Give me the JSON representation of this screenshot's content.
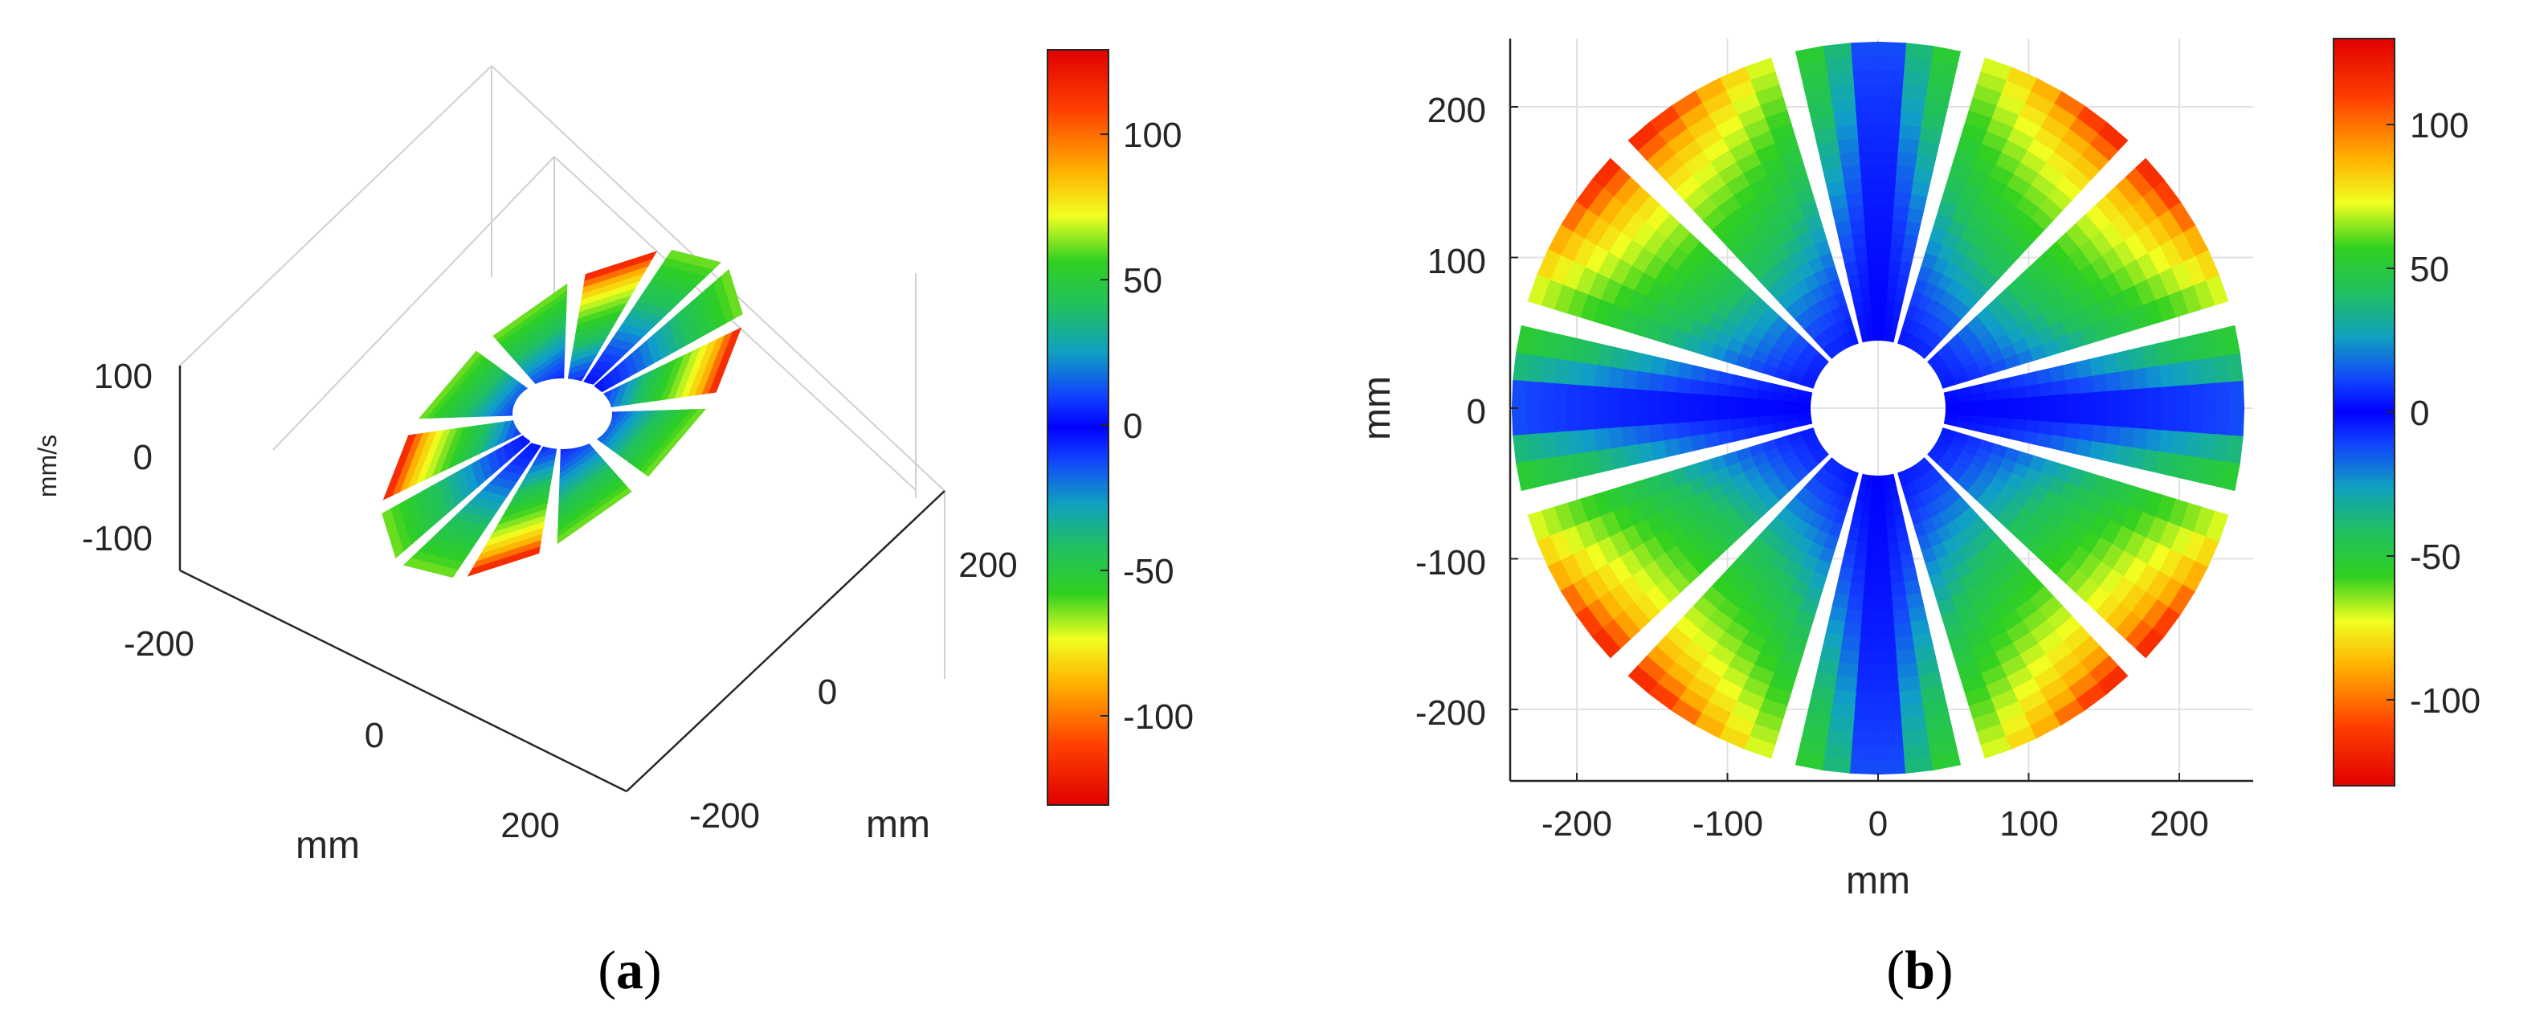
{
  "chart_data": [
    {
      "id": "a",
      "type": "heatmap",
      "view": "3d-surface",
      "colormap": "jet-reversed-symmetric",
      "center_hub_radius_mm": 45,
      "outer_radius_mm": 230,
      "blade_count": 12,
      "blade_angles_deg": [
        15,
        45,
        75,
        105,
        135,
        165,
        195,
        225,
        255,
        285,
        315,
        345
      ],
      "value_pattern": "axial blades are ~0; diagonal blades grow toward outer edge to |v|≈125",
      "xlabel": "mm",
      "ylabel": "mm",
      "zlabel": "mm/s",
      "xticks": [
        "-200",
        "0",
        "200"
      ],
      "yticks": [
        "-200",
        "0",
        "200"
      ],
      "zticks": [
        "100",
        "0",
        "-100"
      ],
      "colorbar": {
        "ticks": [
          "100",
          "50",
          "0",
          "-50",
          "-100"
        ],
        "range": [
          -130,
          130
        ]
      },
      "panel_label": "a"
    },
    {
      "id": "b",
      "type": "heatmap",
      "view": "2d-top",
      "colormap": "jet-reversed-symmetric",
      "inner_radius_mm": 45,
      "outer_radius_mm": 243,
      "blade_centers_deg": [
        0,
        30,
        60,
        90,
        120,
        150,
        180,
        210,
        240,
        270,
        300,
        330
      ],
      "blade_half_width_deg": 13,
      "value_model": "v = 125 * (r/243)^2 * |sin(2*theta)|",
      "xlim": [
        -245,
        245
      ],
      "ylim": [
        -245,
        245
      ],
      "xticks": [
        "-200",
        "-100",
        "0",
        "100",
        "200"
      ],
      "yticks": [
        "200",
        "100",
        "0",
        "-100",
        "-200"
      ],
      "xlabel": "mm",
      "ylabel": "mm",
      "grid": true,
      "colorbar": {
        "ticks": [
          "100",
          "50",
          "0",
          "-50",
          "-100"
        ],
        "range": [
          -130,
          130
        ]
      },
      "panel_label": "b"
    }
  ]
}
